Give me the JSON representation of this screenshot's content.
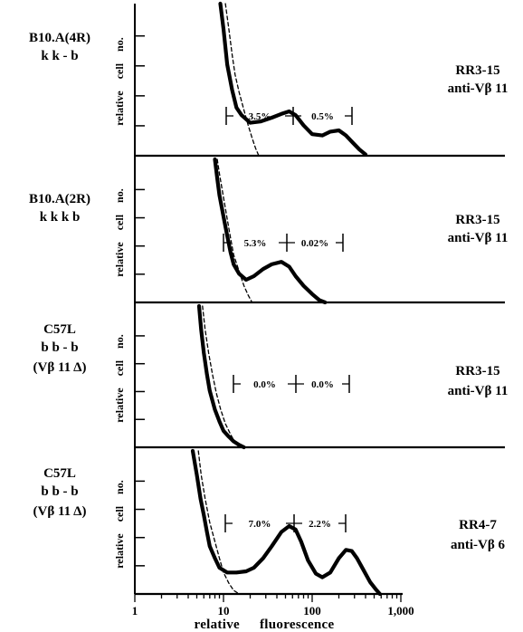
{
  "chart_data": {
    "type": "line",
    "xscale": "log",
    "xlim": [
      1,
      1000
    ],
    "xlabel": "relative fluorescence",
    "ylabel": "relative cell no.",
    "xticks": [
      "1",
      "10",
      "100",
      "1,000"
    ],
    "panels": [
      {
        "left_label": [
          "B10.A(4R)",
          "k k - b"
        ],
        "right_label": [
          "RR3-15",
          "anti-Vβ 11"
        ],
        "gates": [
          "3.5%",
          "0.5%"
        ],
        "series": [
          {
            "style": "solid",
            "x": [
              9.2,
              10,
              11,
              12.5,
              14,
              16,
              20,
              26,
              35,
              45,
              55,
              65,
              80,
              100,
              130,
              160,
              200,
              240,
              290,
              340,
              400
            ],
            "y": [
              6.0,
              5.0,
              3.6,
              2.6,
              1.9,
              1.6,
              1.3,
              1.35,
              1.5,
              1.65,
              1.75,
              1.6,
              1.2,
              0.85,
              0.8,
              0.95,
              1.0,
              0.8,
              0.5,
              0.25,
              0.05
            ]
          },
          {
            "style": "dashed",
            "x": [
              10.5,
              11.5,
              12.5,
              13.5,
              15,
              17,
              19,
              21,
              23,
              25
            ],
            "y": [
              6.0,
              5.0,
              4.0,
              3.2,
              2.5,
              1.8,
              1.2,
              0.7,
              0.3,
              0.0
            ]
          }
        ]
      },
      {
        "left_label": [
          "B10.A(2R)",
          "k k k b"
        ],
        "right_label": [
          "RR3-15",
          "anti-Vβ 11"
        ],
        "gates": [
          "5.3%",
          "0.02%"
        ],
        "series": [
          {
            "style": "solid",
            "x": [
              8.0,
              8.5,
              9,
              10,
              11,
              12,
              13,
              15,
              18,
              22,
              28,
              35,
              45,
              55,
              65,
              80,
              100,
              120,
              140
            ],
            "y": [
              6.0,
              5.2,
              4.5,
              3.6,
              2.8,
              2.1,
              1.6,
              1.2,
              0.95,
              1.1,
              1.4,
              1.6,
              1.7,
              1.5,
              1.1,
              0.7,
              0.35,
              0.1,
              0.0
            ]
          },
          {
            "style": "dashed",
            "x": [
              8.5,
              9,
              10,
              11,
              12,
              13,
              15,
              17,
              19,
              21
            ],
            "y": [
              6.0,
              5.4,
              4.4,
              3.5,
              2.7,
              2.0,
              1.3,
              0.7,
              0.3,
              0.0
            ]
          }
        ]
      },
      {
        "left_label": [
          "C57L",
          "b b - b",
          "(Vβ 11 Δ)"
        ],
        "right_label": [
          "RR3-15",
          "anti-Vβ 11"
        ],
        "gates": [
          "0.0%",
          "0.0%"
        ],
        "series": [
          {
            "style": "solid",
            "x": [
              5.3,
              5.6,
              6,
              6.5,
              7,
              8,
              9,
              10,
              11.5,
              13,
              15,
              17
            ],
            "y": [
              6.0,
              5.0,
              4.0,
              3.1,
              2.4,
              1.6,
              1.1,
              0.7,
              0.45,
              0.25,
              0.1,
              0.0
            ]
          },
          {
            "style": "dashed",
            "x": [
              5.8,
              6.2,
              6.8,
              7.5,
              8.3,
              9.3,
              10.5,
              12,
              13.5,
              15
            ],
            "y": [
              6.0,
              5.0,
              4.0,
              3.1,
              2.3,
              1.6,
              1.0,
              0.55,
              0.2,
              0.0
            ]
          }
        ]
      },
      {
        "left_label": [
          "C57L",
          "b b - b",
          "(Vβ 11 Δ)"
        ],
        "right_label": [
          "RR4-7",
          "anti-Vβ 6"
        ],
        "gates": [
          "7.0%",
          "2.2%"
        ],
        "series": [
          {
            "style": "solid",
            "x": [
              4.5,
              5,
              5.5,
              6,
              6.5,
              7,
              8,
              9,
              11,
              14,
              18,
              22,
              28,
              35,
              45,
              55,
              65,
              75,
              90,
              110,
              130,
              160,
              200,
              240,
              280,
              320,
              380,
              450,
              520,
              580
            ],
            "y": [
              6.0,
              5.0,
              4.0,
              3.3,
              2.6,
              2.0,
              1.5,
              1.1,
              0.9,
              0.9,
              0.95,
              1.1,
              1.5,
              2.0,
              2.6,
              2.85,
              2.7,
              2.2,
              1.4,
              0.85,
              0.7,
              0.9,
              1.5,
              1.85,
              1.8,
              1.5,
              1.0,
              0.5,
              0.2,
              0.0
            ]
          },
          {
            "style": "dashed",
            "x": [
              5.2,
              5.6,
              6.2,
              7,
              8,
              9,
              10,
              11.5,
              13,
              15
            ],
            "y": [
              6.0,
              5.0,
              4.0,
              3.0,
              2.2,
              1.5,
              0.9,
              0.45,
              0.15,
              0.0
            ]
          }
        ]
      }
    ]
  }
}
